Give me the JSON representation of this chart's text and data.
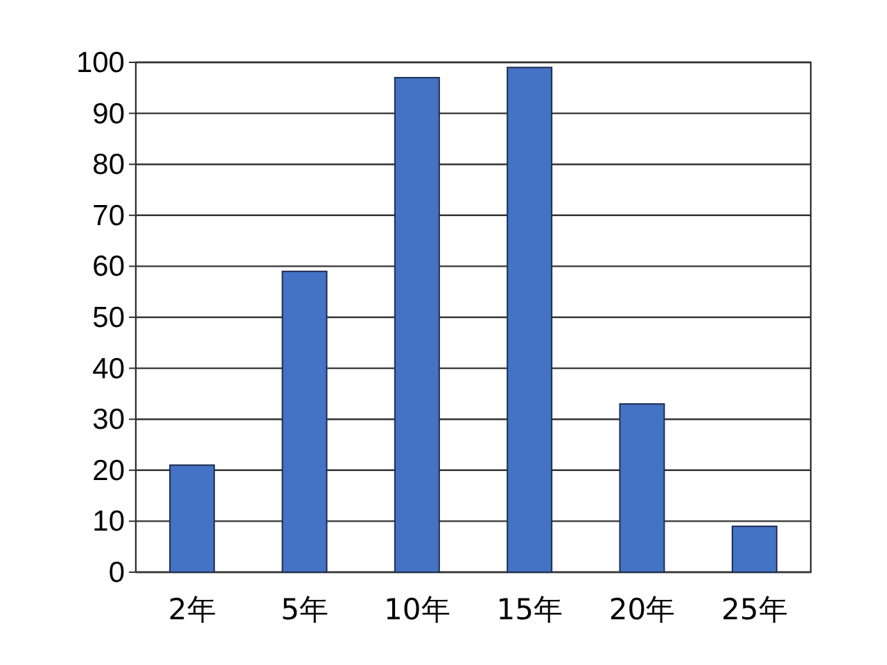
{
  "chart_data": {
    "type": "bar",
    "categories": [
      "2年",
      "5年",
      "10年",
      "15年",
      "20年",
      "25年"
    ],
    "values": [
      21,
      59,
      97,
      99,
      33,
      9
    ],
    "color": "#4472c4",
    "ylim": [
      0,
      100
    ],
    "yticks": [
      0,
      10,
      20,
      30,
      40,
      50,
      60,
      70,
      80,
      90,
      100
    ],
    "grid": "y"
  }
}
